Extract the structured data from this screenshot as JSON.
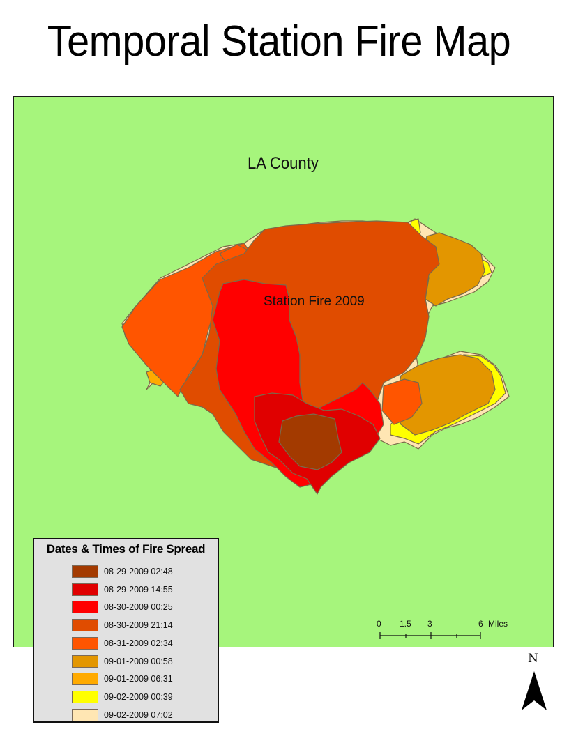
{
  "title": "Temporal Station Fire Map",
  "map": {
    "background_color": "#a6f57c",
    "labels": {
      "county": "LA County",
      "fire": "Station Fire 2009"
    }
  },
  "legend": {
    "title": "Dates & Times of Fire Spread",
    "items": [
      {
        "label": "08-29-2009 02:48",
        "color": "#a33a00"
      },
      {
        "label": "08-29-2009 14:55",
        "color": "#e00000"
      },
      {
        "label": "08-30-2009 00:25",
        "color": "#ff0000"
      },
      {
        "label": "08-30-2009 21:14",
        "color": "#e04c00"
      },
      {
        "label": "08-31-2009 02:34",
        "color": "#ff5500"
      },
      {
        "label": "09-01-2009 00:58",
        "color": "#e39600"
      },
      {
        "label": "09-01-2009 06:31",
        "color": "#ffaa00"
      },
      {
        "label": "09-02-2009 00:39",
        "color": "#ffff00"
      },
      {
        "label": "09-02-2009 07:02",
        "color": "#ffe6b3"
      }
    ]
  },
  "scalebar": {
    "ticks": [
      "0",
      "1.5",
      "3",
      "6"
    ],
    "unit": "Miles"
  },
  "north_arrow": {
    "label": "N"
  }
}
